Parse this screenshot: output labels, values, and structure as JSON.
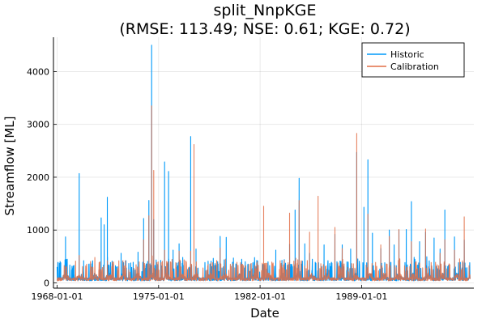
{
  "chart_data": {
    "type": "line",
    "title": "split_NnpKGE",
    "subtitle": "(RMSE: 113.49; NSE: 0.61; KGE: 0.72)",
    "xlabel": "Date",
    "ylabel": "Streamflow [ML]",
    "x_range": [
      "1967-10-01",
      "1996-09-30"
    ],
    "ylim": [
      -100,
      4650
    ],
    "x_ticks": [
      "1968-01-01",
      "1975-01-01",
      "1982-01-01",
      "1989-01-01"
    ],
    "y_ticks": [
      0,
      1000,
      2000,
      3000,
      4000
    ],
    "grid": true,
    "legend_position": "top-right",
    "baseline": 40,
    "series": [
      {
        "name": "Historic",
        "color": "#009AFA",
        "peaks": [
          {
            "x": "1968-04-01",
            "y": 380
          },
          {
            "x": "1968-08-01",
            "y": 870
          },
          {
            "x": "1969-03-01",
            "y": 330
          },
          {
            "x": "1969-07-10",
            "y": 2070
          },
          {
            "x": "1969-11-01",
            "y": 420
          },
          {
            "x": "1970-05-01",
            "y": 360
          },
          {
            "x": "1971-01-15",
            "y": 1230
          },
          {
            "x": "1971-04-01",
            "y": 1100
          },
          {
            "x": "1971-06-20",
            "y": 1620
          },
          {
            "x": "1972-02-01",
            "y": 300
          },
          {
            "x": "1972-06-01",
            "y": 560
          },
          {
            "x": "1972-10-01",
            "y": 420
          },
          {
            "x": "1973-04-01",
            "y": 390
          },
          {
            "x": "1973-08-01",
            "y": 580
          },
          {
            "x": "1973-12-20",
            "y": 1220
          },
          {
            "x": "1974-05-01",
            "y": 1560
          },
          {
            "x": "1974-07-10",
            "y": 4500
          },
          {
            "x": "1974-09-01",
            "y": 1200
          },
          {
            "x": "1975-06-01",
            "y": 2290
          },
          {
            "x": "1975-09-10",
            "y": 2110
          },
          {
            "x": "1976-01-01",
            "y": 620
          },
          {
            "x": "1976-06-01",
            "y": 740
          },
          {
            "x": "1976-09-01",
            "y": 480
          },
          {
            "x": "1977-03-20",
            "y": 2770
          },
          {
            "x": "1977-08-01",
            "y": 640
          },
          {
            "x": "1978-06-01",
            "y": 410
          },
          {
            "x": "1979-04-01",
            "y": 880
          },
          {
            "x": "1979-09-01",
            "y": 860
          },
          {
            "x": "1980-03-01",
            "y": 470
          },
          {
            "x": "1980-09-01",
            "y": 360
          },
          {
            "x": "1981-07-01",
            "y": 380
          },
          {
            "x": "1982-04-01",
            "y": 350
          },
          {
            "x": "1983-02-01",
            "y": 620
          },
          {
            "x": "1983-09-01",
            "y": 420
          },
          {
            "x": "1984-01-15",
            "y": 730
          },
          {
            "x": "1984-06-01",
            "y": 1380
          },
          {
            "x": "1984-09-10",
            "y": 1980
          },
          {
            "x": "1985-02-01",
            "y": 740
          },
          {
            "x": "1985-06-01",
            "y": 560
          },
          {
            "x": "1986-06-01",
            "y": 720
          },
          {
            "x": "1987-03-01",
            "y": 920
          },
          {
            "x": "1987-09-01",
            "y": 720
          },
          {
            "x": "1988-04-01",
            "y": 640
          },
          {
            "x": "1988-09-01",
            "y": 2470
          },
          {
            "x": "1989-03-01",
            "y": 1430
          },
          {
            "x": "1989-06-10",
            "y": 2330
          },
          {
            "x": "1989-10-01",
            "y": 940
          },
          {
            "x": "1990-05-01",
            "y": 650
          },
          {
            "x": "1990-12-01",
            "y": 1000
          },
          {
            "x": "1991-04-01",
            "y": 720
          },
          {
            "x": "1991-08-01",
            "y": 1000
          },
          {
            "x": "1992-02-01",
            "y": 1010
          },
          {
            "x": "1992-06-10",
            "y": 1540
          },
          {
            "x": "1993-01-01",
            "y": 780
          },
          {
            "x": "1993-06-01",
            "y": 960
          },
          {
            "x": "1994-01-01",
            "y": 850
          },
          {
            "x": "1994-06-01",
            "y": 640
          },
          {
            "x": "1994-10-01",
            "y": 1380
          },
          {
            "x": "1995-06-01",
            "y": 870
          },
          {
            "x": "1996-02-01",
            "y": 810
          }
        ]
      },
      {
        "name": "Calibration",
        "color": "#E26F46",
        "peaks": [
          {
            "x": "1968-08-01",
            "y": 300
          },
          {
            "x": "1969-07-10",
            "y": 520
          },
          {
            "x": "1971-06-20",
            "y": 420
          },
          {
            "x": "1973-12-20",
            "y": 820
          },
          {
            "x": "1974-05-01",
            "y": 1270
          },
          {
            "x": "1974-07-10",
            "y": 3350
          },
          {
            "x": "1974-09-01",
            "y": 2130
          },
          {
            "x": "1975-06-01",
            "y": 620
          },
          {
            "x": "1976-06-01",
            "y": 600
          },
          {
            "x": "1977-03-20",
            "y": 600
          },
          {
            "x": "1977-06-10",
            "y": 2620
          },
          {
            "x": "1978-06-01",
            "y": 350
          },
          {
            "x": "1979-04-01",
            "y": 660
          },
          {
            "x": "1980-09-01",
            "y": 320
          },
          {
            "x": "1982-04-01",
            "y": 1450
          },
          {
            "x": "1983-09-01",
            "y": 420
          },
          {
            "x": "1984-01-15",
            "y": 1320
          },
          {
            "x": "1984-09-10",
            "y": 1560
          },
          {
            "x": "1985-06-01",
            "y": 960
          },
          {
            "x": "1986-01-01",
            "y": 1640
          },
          {
            "x": "1987-03-01",
            "y": 1050
          },
          {
            "x": "1987-09-01",
            "y": 650
          },
          {
            "x": "1988-09-01",
            "y": 2830
          },
          {
            "x": "1989-06-10",
            "y": 1300
          },
          {
            "x": "1990-05-01",
            "y": 720
          },
          {
            "x": "1990-12-01",
            "y": 880
          },
          {
            "x": "1991-08-01",
            "y": 1010
          },
          {
            "x": "1992-06-10",
            "y": 780
          },
          {
            "x": "1993-06-01",
            "y": 1020
          },
          {
            "x": "1994-06-01",
            "y": 560
          },
          {
            "x": "1994-10-01",
            "y": 820
          },
          {
            "x": "1995-06-01",
            "y": 620
          },
          {
            "x": "1996-02-01",
            "y": 1250
          }
        ]
      }
    ]
  }
}
